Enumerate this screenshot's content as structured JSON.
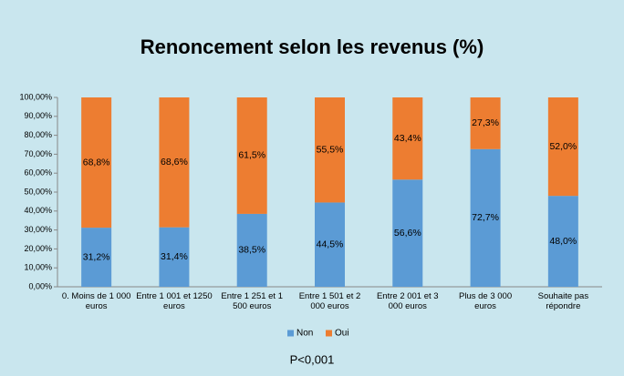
{
  "chart_data": {
    "type": "stacked-bar",
    "title": "Renoncement selon les revenus (%)",
    "categories": [
      "0. Moins de 1 000 euros",
      "Entre 1 001 et 1250 euros",
      "Entre 1 251 et 1 500 euros",
      "Entre 1 501 et 2 000 euros",
      "Entre 2 001 et 3 000 euros",
      "Plus de 3 000 euros",
      "Souhaite pas répondre"
    ],
    "series": [
      {
        "name": "Non",
        "color": "#5b9bd5",
        "values": [
          31.2,
          31.4,
          38.5,
          44.5,
          56.6,
          72.7,
          48.0
        ],
        "value_labels": [
          "31,2%",
          "31,4%",
          "38,5%",
          "44,5%",
          "56,6%",
          "72,7%",
          "48,0%"
        ]
      },
      {
        "name": "Oui",
        "color": "#ed7d31",
        "values": [
          68.8,
          68.6,
          61.5,
          55.5,
          43.4,
          27.3,
          52.0
        ],
        "value_labels": [
          "68,8%",
          "68,6%",
          "61,5%",
          "55,5%",
          "43,4%",
          "27,3%",
          "52,0%"
        ]
      }
    ],
    "ylim": [
      0,
      100
    ],
    "yticks": [
      {
        "value": 0,
        "label": "0,00%"
      },
      {
        "value": 10,
        "label": "10,00%"
      },
      {
        "value": 20,
        "label": "20,00%"
      },
      {
        "value": 30,
        "label": "30,00%"
      },
      {
        "value": 40,
        "label": "40,00%"
      },
      {
        "value": 50,
        "label": "50,00%"
      },
      {
        "value": 60,
        "label": "60,00%"
      },
      {
        "value": 70,
        "label": "70,00%"
      },
      {
        "value": 80,
        "label": "80,00%"
      },
      {
        "value": 90,
        "label": "90,00%"
      },
      {
        "value": 100,
        "label": "100,00%"
      }
    ],
    "grid": false,
    "legend": "bottom",
    "annotation": "P<0,001"
  }
}
